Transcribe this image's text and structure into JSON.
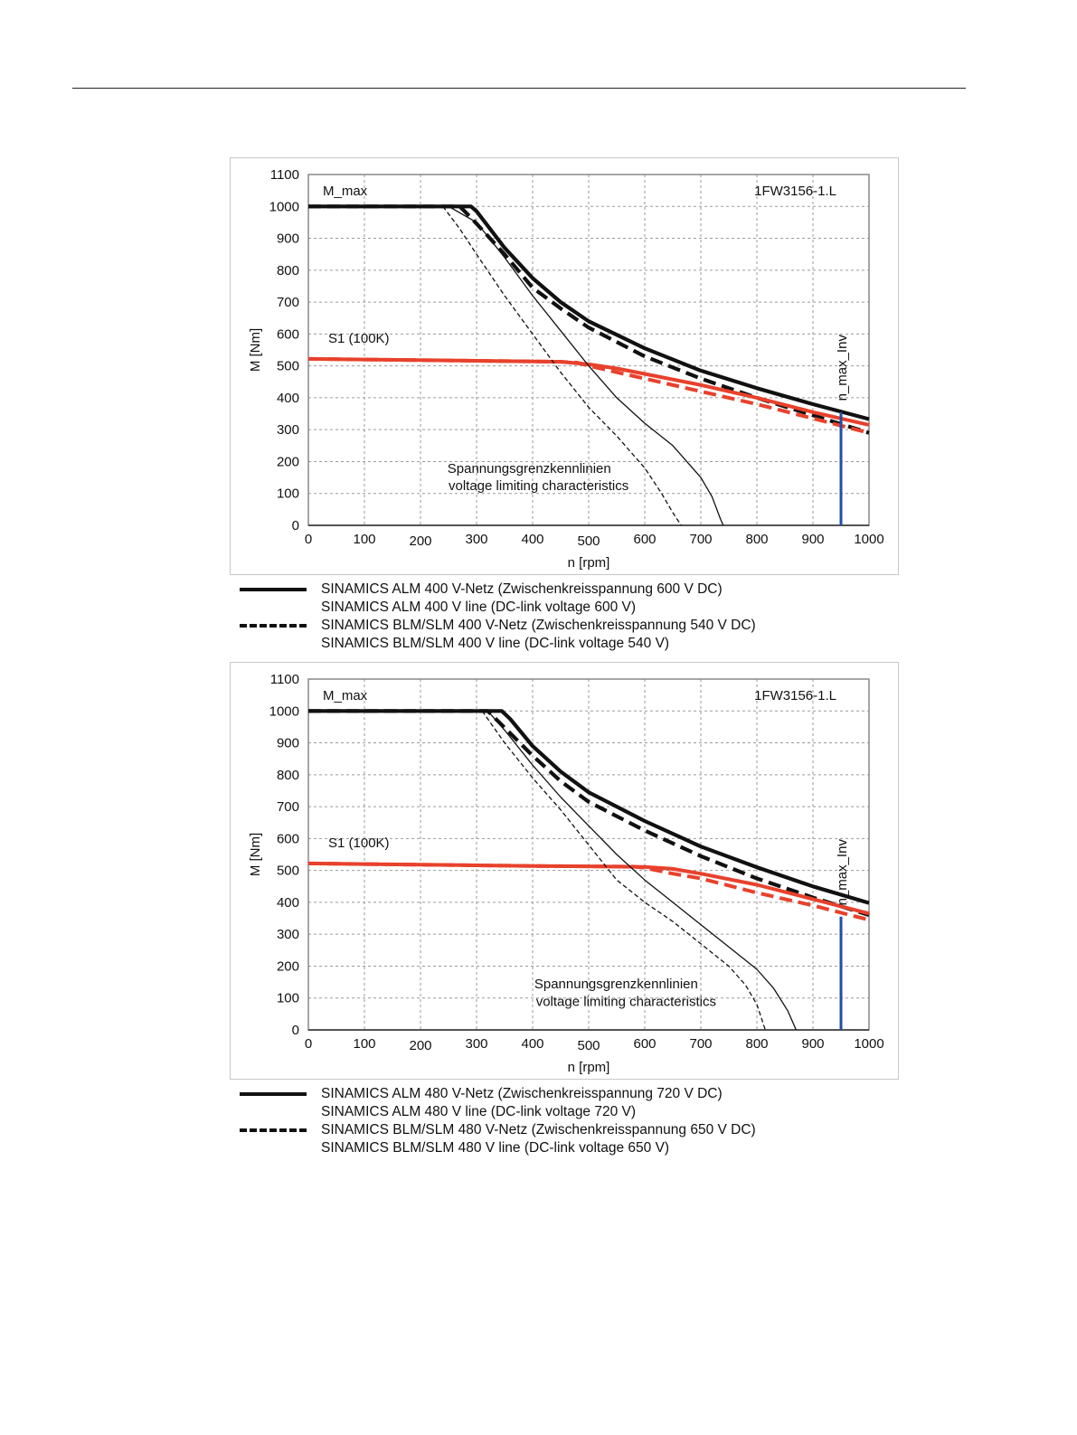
{
  "chart_data": [
    {
      "type": "line",
      "model_label": "1FW3156-1.L",
      "xlabel": "n [rpm]",
      "ylabel": "M [Nm]",
      "xlim": [
        0,
        1000
      ],
      "ylim": [
        0,
        1100
      ],
      "xticks": [
        0,
        100,
        200,
        300,
        400,
        500,
        600,
        700,
        800,
        900,
        1000
      ],
      "yticks": [
        0,
        100,
        200,
        300,
        400,
        500,
        600,
        700,
        800,
        900,
        1000,
        1100
      ],
      "grid": true,
      "annotations": {
        "mmax": "M_max",
        "s1": "S1 (100K)",
        "vlim_de": "Spannungsgrenzkennlinien",
        "vlim_en": "voltage limiting characteristics",
        "nmax": "n_max_Inv"
      },
      "nmax_rpm": 950,
      "colors": {
        "black": "#111111",
        "red": "#e8412c",
        "blue": "#1f4fa8"
      },
      "series": [
        {
          "style": "mmax-solid",
          "x": [
            0,
            290,
            300,
            350,
            400,
            450,
            500,
            600,
            700,
            800,
            900,
            1000
          ],
          "y": [
            1000,
            1000,
            985,
            870,
            775,
            700,
            640,
            555,
            485,
            430,
            380,
            333
          ]
        },
        {
          "style": "mmax-dashed",
          "x": [
            0,
            270,
            290,
            350,
            400,
            450,
            500,
            600,
            700,
            800,
            900,
            1000
          ],
          "y": [
            1000,
            1000,
            965,
            850,
            745,
            680,
            620,
            530,
            460,
            400,
            345,
            290
          ]
        },
        {
          "style": "s1-solid",
          "x": [
            0,
            100,
            200,
            300,
            400,
            450,
            500,
            550,
            600,
            700,
            800,
            900,
            1000
          ],
          "y": [
            522,
            520,
            518,
            516,
            514,
            513,
            505,
            492,
            475,
            440,
            400,
            355,
            315
          ]
        },
        {
          "style": "s1-dashed",
          "x": [
            0,
            100,
            200,
            300,
            400,
            450,
            480,
            500,
            550,
            600,
            700,
            800,
            900,
            1000
          ],
          "y": [
            522,
            520,
            518,
            516,
            514,
            513,
            510,
            500,
            480,
            460,
            420,
            380,
            335,
            290
          ]
        },
        {
          "style": "vlim-solid",
          "x": [
            250,
            300,
            350,
            400,
            450,
            500,
            550,
            600,
            650,
            700,
            720,
            735,
            740
          ],
          "y": [
            1000,
            950,
            840,
            720,
            610,
            500,
            400,
            320,
            250,
            150,
            90,
            20,
            0
          ]
        },
        {
          "style": "vlim-dashed",
          "x": [
            240,
            270,
            300,
            350,
            400,
            450,
            500,
            550,
            600,
            630,
            650,
            665
          ],
          "y": [
            1000,
            930,
            850,
            720,
            600,
            480,
            370,
            280,
            180,
            100,
            40,
            0
          ]
        },
        {
          "style": "zero-line",
          "x": [
            0,
            1000
          ],
          "y": [
            0,
            0
          ]
        }
      ],
      "legend": [
        {
          "style": "solid",
          "de": "SINAMICS ALM  400 V-Netz (Zwischenkreisspannung 600 V DC)",
          "en": "SINAMICS ALM  400 V line (DC-link voltage 600 V)"
        },
        {
          "style": "dashed",
          "de": "SINAMICS BLM/SLM  400 V-Netz (Zwischenkreisspannung 540 V DC)",
          "en": "SINAMICS BLM/SLM  400 V line (DC-link voltage 540 V)"
        }
      ]
    },
    {
      "type": "line",
      "model_label": "1FW3156-1.L",
      "xlabel": "n [rpm]",
      "ylabel": "M [Nm]",
      "xlim": [
        0,
        1000
      ],
      "ylim": [
        0,
        1100
      ],
      "xticks": [
        0,
        100,
        200,
        300,
        400,
        500,
        600,
        700,
        800,
        900,
        1000
      ],
      "yticks": [
        0,
        100,
        200,
        300,
        400,
        500,
        600,
        700,
        800,
        900,
        1000,
        1100
      ],
      "grid": true,
      "annotations": {
        "mmax": "M_max",
        "s1": "S1 (100K)",
        "vlim_de": "Spannungsgrenzkennlinien",
        "vlim_en": "voltage limiting characteristics",
        "nmax": "n_max_Inv"
      },
      "nmax_rpm": 950,
      "colors": {
        "black": "#111111",
        "red": "#e8412c",
        "blue": "#1f4fa8"
      },
      "series": [
        {
          "style": "mmax-solid",
          "x": [
            0,
            345,
            360,
            400,
            450,
            500,
            600,
            700,
            800,
            900,
            1000
          ],
          "y": [
            1000,
            1000,
            975,
            890,
            810,
            745,
            655,
            575,
            510,
            450,
            398
          ]
        },
        {
          "style": "mmax-dashed",
          "x": [
            0,
            320,
            340,
            400,
            450,
            500,
            600,
            700,
            800,
            900,
            1000
          ],
          "y": [
            1000,
            1000,
            965,
            860,
            780,
            715,
            625,
            545,
            475,
            415,
            360
          ]
        },
        {
          "style": "s1-solid",
          "x": [
            0,
            100,
            200,
            300,
            400,
            500,
            600,
            650,
            700,
            800,
            900,
            1000
          ],
          "y": [
            522,
            520,
            518,
            516,
            514,
            513,
            511,
            505,
            490,
            455,
            410,
            365
          ]
        },
        {
          "style": "s1-dashed",
          "x": [
            0,
            100,
            200,
            300,
            400,
            500,
            580,
            600,
            650,
            700,
            800,
            900,
            1000
          ],
          "y": [
            522,
            520,
            518,
            516,
            514,
            513,
            512,
            508,
            490,
            475,
            430,
            390,
            345
          ]
        },
        {
          "style": "vlim-solid",
          "x": [
            320,
            350,
            400,
            450,
            500,
            550,
            600,
            650,
            700,
            750,
            800,
            830,
            855,
            870
          ],
          "y": [
            1000,
            940,
            830,
            730,
            640,
            550,
            470,
            400,
            330,
            260,
            190,
            130,
            60,
            0
          ]
        },
        {
          "style": "vlim-dashed",
          "x": [
            310,
            350,
            400,
            450,
            500,
            550,
            600,
            650,
            700,
            750,
            780,
            800,
            815
          ],
          "y": [
            1000,
            900,
            790,
            690,
            580,
            470,
            400,
            340,
            270,
            200,
            140,
            80,
            0
          ]
        },
        {
          "style": "zero-line",
          "x": [
            0,
            1000
          ],
          "y": [
            0,
            0
          ]
        }
      ],
      "legend": [
        {
          "style": "solid",
          "de": "SINAMICS ALM  480 V-Netz (Zwischenkreisspannung 720 V DC)",
          "en": "SINAMICS ALM  480 V line (DC-link voltage 720 V)"
        },
        {
          "style": "dashed",
          "de": "SINAMICS BLM/SLM  480 V-Netz (Zwischenkreisspannung 650 V DC)",
          "en": "SINAMICS BLM/SLM  480 V line (DC-link voltage 650 V)"
        }
      ]
    }
  ]
}
